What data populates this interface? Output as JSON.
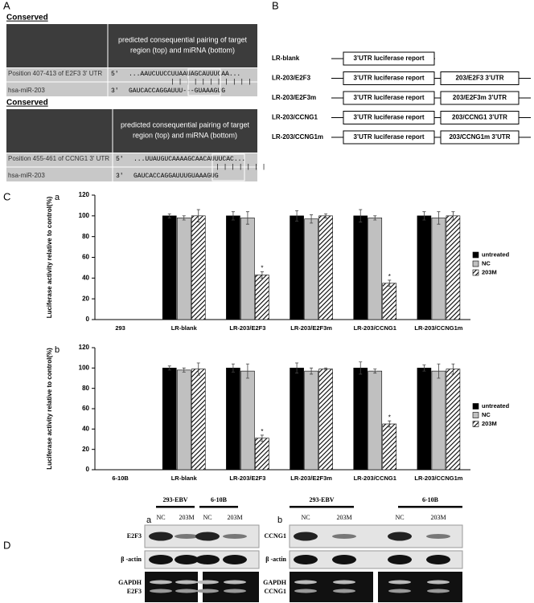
{
  "panel_labels": [
    "A",
    "B",
    "C",
    "D"
  ],
  "panel_a": {
    "blocks": [
      {
        "heading": "Conserved",
        "header": [
          "predicted consequential pairing of target",
          "region (top) and miRNA (bottom)"
        ],
        "target_label": "Position 407-413 of E2F3 3' UTR",
        "target_prime": "5'",
        "target_seq": "...AAUCUUCCUUAAUAGCAUUUCAA...",
        "pairing": "| | | |      | | | | | | |",
        "mirna_label": "hsa-miR-203",
        "mirna_prime": "3'",
        "mirna_seq": "GAUCACCAGGAUUU---GUAAAGUG"
      },
      {
        "heading": "Conserved",
        "header": [
          "predicted consequential pairing of target",
          "region (top) and miRNA (bottom)"
        ],
        "target_label": "Position 455-461 of CCNG1 3' UTR",
        "target_prime": "5'",
        "target_seq": "...UUAUGUCAAAAGCAACAUUUCAC...",
        "pairing": "| | | | | | |",
        "mirna_label": "hsa-miR-203",
        "mirna_prime": "3'",
        "mirna_seq": "GAUCACCAGGAUUUGUAAAGUG"
      }
    ]
  },
  "panel_b": {
    "constructs": [
      {
        "name": "LR-blank",
        "boxes": [
          "3’UTR luciferase report"
        ]
      },
      {
        "name": "LR-203/E2F3",
        "boxes": [
          "3’UTR luciferase report",
          "203/E2F3 3’UTR"
        ]
      },
      {
        "name": "LR-203/E2F3m",
        "boxes": [
          "3’UTR luciferase report",
          "203/E2F3m 3’UTR"
        ]
      },
      {
        "name": "LR-203/CCNG1",
        "boxes": [
          "3’UTR luciferase report",
          "203/CCNG1 3’UTR"
        ]
      },
      {
        "name": "LR-203/CCNG1m",
        "boxes": [
          "3’UTR luciferase report",
          "203/CCNG1m 3’UTR"
        ]
      }
    ]
  },
  "chart_data": [
    {
      "type": "bar",
      "label": "a",
      "y_label": "Luciferase activity relative to control(%)",
      "categories": [
        "293",
        "LR-blank",
        "LR-203/E2F3",
        "LR-203/E2F3m",
        "LR-203/CCNG1",
        "LR-203/CCNG1m"
      ],
      "series": [
        {
          "name": "untreated",
          "color": "#000000",
          "values": [
            null,
            100,
            100,
            100,
            100,
            100
          ],
          "errors": [
            null,
            2,
            4,
            5,
            6,
            4
          ]
        },
        {
          "name": "NC",
          "color": "#c0c0c0",
          "values": [
            null,
            98,
            98,
            97,
            98,
            98
          ],
          "errors": [
            null,
            2,
            6,
            4,
            2,
            6
          ]
        },
        {
          "name": "203M",
          "color": "#ffffff",
          "hatch": true,
          "values": [
            null,
            100,
            43,
            100,
            35,
            100
          ],
          "errors": [
            null,
            6,
            3,
            2,
            3,
            4
          ]
        }
      ],
      "annotations": [
        {
          "text": "*",
          "series": "203M",
          "category": "LR-203/E2F3"
        },
        {
          "text": "*",
          "series": "203M",
          "category": "LR-203/CCNG1"
        }
      ],
      "ylim": [
        0,
        120
      ],
      "yticks": [
        0,
        20,
        40,
        60,
        80,
        100,
        120
      ],
      "legend": "right"
    },
    {
      "type": "bar",
      "label": "b",
      "y_label": "Luciferase activity relative to control(%)",
      "categories": [
        "6-10B",
        "LR-blank",
        "LR-203/E2F3",
        "LR-203/E2F3m",
        "LR-203/CCNG1",
        "LR-203/CCNG1m"
      ],
      "series": [
        {
          "name": "untreated",
          "color": "#000000",
          "values": [
            null,
            100,
            100,
            100,
            100,
            100
          ],
          "errors": [
            null,
            2,
            4,
            5,
            6,
            3
          ]
        },
        {
          "name": "NC",
          "color": "#c0c0c0",
          "values": [
            null,
            98,
            97,
            97,
            97,
            97
          ],
          "errors": [
            null,
            2,
            7,
            3,
            2,
            7
          ]
        },
        {
          "name": "203M",
          "color": "#ffffff",
          "hatch": true,
          "values": [
            null,
            99,
            31,
            99,
            45,
            99
          ],
          "errors": [
            null,
            6,
            3,
            1,
            3,
            5
          ]
        }
      ],
      "annotations": [
        {
          "text": "*",
          "series": "203M",
          "category": "LR-203/E2F3"
        },
        {
          "text": "*",
          "series": "203M",
          "category": "LR-203/CCNG1"
        }
      ],
      "ylim": [
        0,
        120
      ],
      "yticks": [
        0,
        20,
        40,
        60,
        80,
        100,
        120
      ],
      "legend": "right"
    }
  ],
  "panel_d": {
    "a": {
      "label": "a",
      "groups": [
        "293-EBV",
        "6-10B"
      ],
      "lanes": [
        "NC",
        "203M",
        "NC",
        "203M"
      ],
      "rows": [
        "E2F3",
        "β -actin"
      ],
      "rt_label": [
        "GAPDH",
        "E2F3"
      ]
    },
    "b": {
      "label": "b",
      "groups": [
        "293-EBV",
        "6-10B"
      ],
      "lanes": [
        "NC",
        "203M",
        "NC",
        "203M"
      ],
      "rows": [
        "CCNG1",
        "β -actin"
      ],
      "rt_label": [
        "GAPDH",
        "CCNG1"
      ]
    }
  }
}
